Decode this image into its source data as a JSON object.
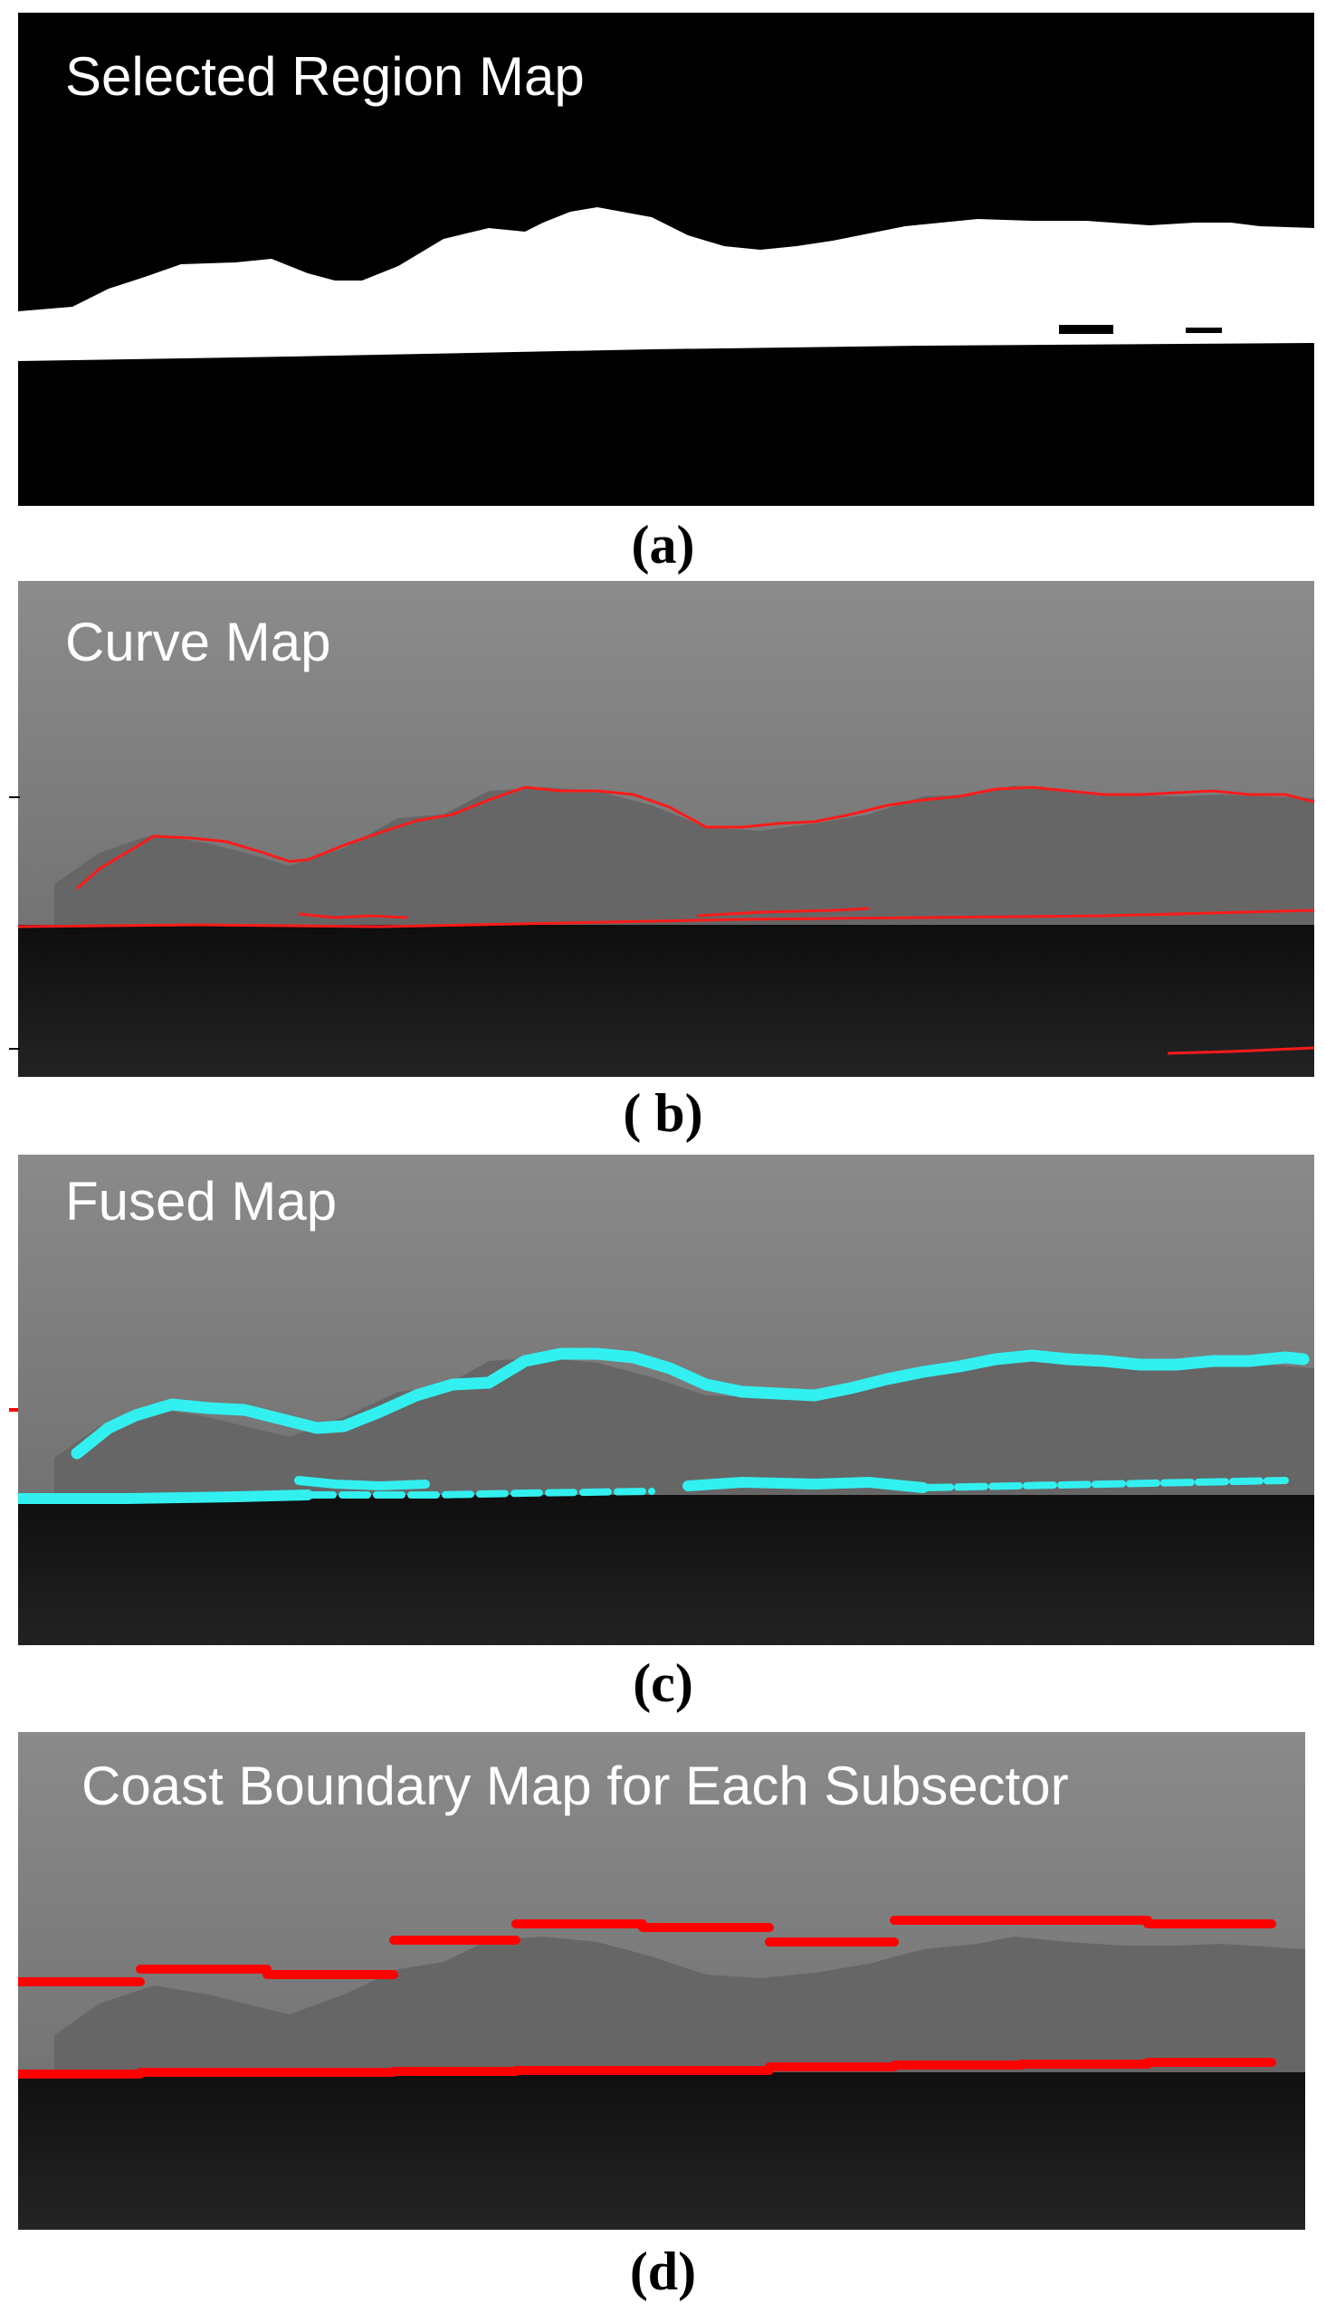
{
  "figure": {
    "panels": [
      {
        "id": "a",
        "title": "Selected Region Map",
        "caption": "(a)"
      },
      {
        "id": "b",
        "title": "Curve Map",
        "caption": "( b)"
      },
      {
        "id": "c",
        "title": "Fused Map",
        "caption": "(c)"
      },
      {
        "id": "d",
        "title": "Coast Boundary Map for Each Subsector",
        "caption": "(d)"
      }
    ]
  },
  "colors": {
    "region_foreground": "#ffffff",
    "region_background": "#000000",
    "curve_color": "#ff1a1a",
    "fused_color": "#33f0f0",
    "subsector_color": "#ff0000",
    "sky_gray": "#8a8a8a",
    "sea_dark": "#161616"
  }
}
